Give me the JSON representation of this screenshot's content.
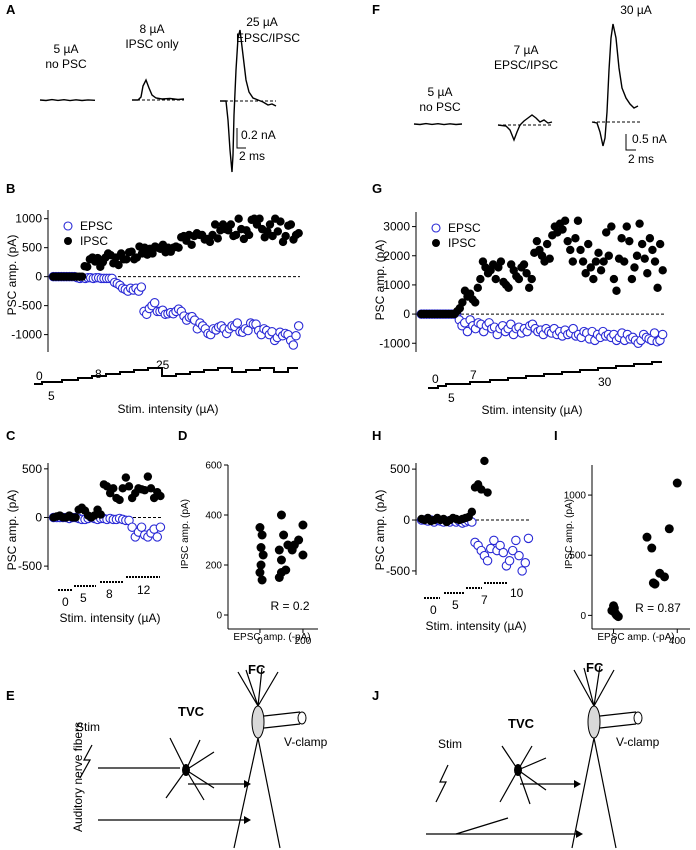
{
  "panels": {
    "A": {
      "letter": "A",
      "traces": [
        {
          "line1": "5 µA",
          "line2": "no PSC"
        },
        {
          "line1": "8 µA",
          "line2": "IPSC only"
        },
        {
          "line1": "25 µA",
          "line2": "EPSC/IPSC"
        }
      ],
      "scale": {
        "amp": "0.2 nA",
        "time": "2 ms"
      }
    },
    "F": {
      "letter": "F",
      "traces": [
        {
          "line1": "5 µA",
          "line2": "no PSC"
        },
        {
          "line1": "7 µA",
          "line2": "EPSC/IPSC"
        },
        {
          "line1": "30 µA",
          "line2": ""
        }
      ],
      "scale": {
        "amp": "0.5 nA",
        "time": "2 ms"
      }
    },
    "B": {
      "letter": "B",
      "ylabel": "PSC amp. (pA)",
      "xlabel": "Stim. intensity (µA)",
      "stim_labels": [
        "0",
        "5",
        "8",
        "25"
      ],
      "legend": {
        "epsc": "EPSC",
        "ipsc": "IPSC"
      }
    },
    "G": {
      "letter": "G",
      "ylabel": "PSC amp. (pA)",
      "xlabel": "Stim. intensity (µA)",
      "stim_labels": [
        "0",
        "5",
        "7",
        "30"
      ],
      "legend": {
        "epsc": "EPSC",
        "ipsc": "IPSC"
      }
    },
    "C": {
      "letter": "C",
      "ylabel": "PSC amp. (pA)",
      "xlabel": "Stim. intensity (µA)",
      "stim_labels": [
        "0",
        "5",
        "8",
        "12"
      ]
    },
    "D": {
      "letter": "D",
      "ylabel": "IPSC amp. (pA)",
      "xlabel": "EPSC amp. (-pA)",
      "r_value": "R = 0.2"
    },
    "H": {
      "letter": "H",
      "ylabel": "PSC amp. (pA)",
      "xlabel": "Stim. intensity (µA)",
      "stim_labels": [
        "0",
        "5",
        "7",
        "10"
      ]
    },
    "I": {
      "letter": "I",
      "ylabel": "IPSC amp. (pA)",
      "xlabel": "EPSC amp. (-pA)",
      "r_value": "R = 0.87"
    },
    "E": {
      "letter": "E",
      "stim": "Stim",
      "tvc": "TVC",
      "fc": "FC",
      "vclamp": "V-clamp",
      "fibers": "Auditory nerve fibers"
    },
    "J": {
      "letter": "J",
      "stim": "Stim",
      "tvc": "TVC",
      "fc": "FC",
      "vclamp": "V-clamp"
    }
  },
  "chart_data": [
    {
      "id": "B",
      "type": "scatter",
      "xlabel": "Stim. intensity (µA)",
      "ylabel": "PSC amp. (pA)",
      "ylim": [
        -1300,
        1150
      ],
      "yticks": [
        -1000,
        -500,
        0,
        500,
        1000
      ],
      "series": [
        {
          "name": "EPSC",
          "values": [
            0,
            0,
            0,
            0,
            0,
            0,
            0,
            0,
            0,
            -20,
            -30,
            -20,
            -30,
            -20,
            -20,
            -30,
            -20,
            -20,
            -30,
            -30,
            -30,
            -30,
            -30,
            -100,
            -120,
            -150,
            -200,
            -220,
            -250,
            -200,
            -230,
            -200,
            -250,
            -180,
            -600,
            -650,
            -550,
            -500,
            -450,
            -600,
            -600,
            -580,
            -650,
            -640,
            -620,
            -640,
            -600,
            -560,
            -600,
            -680,
            -750,
            -700,
            -690,
            -750,
            -900,
            -800,
            -850,
            -900,
            -980,
            -1000,
            -900,
            -920,
            -870,
            -850,
            -900,
            -980,
            -900,
            -850,
            -860,
            -800,
            -950,
            -960,
            -900,
            -930,
            -800,
            -820,
            -820,
            -930,
            -1000,
            -900,
            -930,
            -1000,
            -950,
            -1100,
            -1050,
            -960,
            -1020,
            -980,
            -1000,
            -1100,
            -1180,
            -1020,
            -850
          ]
        },
        {
          "name": "IPSC",
          "values": [
            0,
            0,
            0,
            0,
            0,
            0,
            0,
            0,
            0,
            0,
            0,
            0,
            180,
            170,
            300,
            330,
            260,
            320,
            170,
            250,
            330,
            400,
            370,
            230,
            330,
            200,
            400,
            300,
            300,
            420,
            430,
            300,
            330,
            520,
            400,
            500,
            380,
            480,
            400,
            520,
            500,
            480,
            550,
            420,
            500,
            430,
            500,
            520,
            500,
            680,
            700,
            620,
            720,
            550,
            700,
            750,
            720,
            720,
            640,
            650,
            600,
            720,
            900,
            660,
            800,
            900,
            820,
            800,
            900,
            700,
            720,
            1000,
            820,
            650,
            800,
            720,
            980,
            1000,
            900,
            1000,
            820,
            680,
            780,
            900,
            700,
            1000,
            780,
            950,
            600,
            700,
            880,
            900,
            640,
            720,
            750
          ]
        }
      ]
    },
    {
      "id": "G",
      "type": "scatter",
      "xlabel": "Stim. intensity (µA)",
      "ylabel": "PSC amp. (pA)",
      "ylim": [
        -1300,
        3500
      ],
      "yticks": [
        -1000,
        0,
        1000,
        2000,
        3000
      ],
      "series": [
        {
          "name": "EPSC",
          "values": [
            0,
            0,
            0,
            0,
            0,
            0,
            0,
            0,
            0,
            0,
            0,
            0,
            0,
            0,
            -200,
            -400,
            -300,
            -600,
            -200,
            -400,
            -500,
            -300,
            -350,
            -600,
            -400,
            -300,
            -500,
            -450,
            -700,
            -500,
            -400,
            -600,
            -500,
            -350,
            -700,
            -500,
            -450,
            -650,
            -500,
            -600,
            -400,
            -350,
            -500,
            -600,
            -550,
            -700,
            -500,
            -600,
            -650,
            -500,
            -700,
            -600,
            -750,
            -550,
            -700,
            -650,
            -500,
            -750,
            -700,
            -800,
            -600,
            -650,
            -850,
            -600,
            -900,
            -700,
            -800,
            -600,
            -750,
            -700,
            -800,
            -700,
            -900,
            -800,
            -650,
            -900,
            -700,
            -850,
            -800,
            -900,
            -1000,
            -900,
            -700,
            -800,
            -850,
            -900,
            -650,
            -950,
            -900,
            -700
          ]
        },
        {
          "name": "IPSC",
          "values": [
            0,
            0,
            0,
            0,
            0,
            0,
            0,
            0,
            0,
            0,
            0,
            0,
            0,
            0,
            100,
            200,
            400,
            800,
            600,
            700,
            500,
            400,
            900,
            1200,
            1800,
            1600,
            1400,
            1500,
            1700,
            1200,
            1600,
            1800,
            1100,
            1000,
            900,
            1700,
            1500,
            1300,
            1200,
            1600,
            1700,
            1400,
            900,
            1200,
            2100,
            2500,
            2200,
            2000,
            1800,
            2400,
            1900,
            2700,
            3000,
            2800,
            3100,
            2900,
            3200,
            2500,
            2200,
            1800,
            2600,
            3200,
            2200,
            1800,
            1400,
            2400,
            1600,
            1200,
            1800,
            2100,
            1500,
            1800,
            2800,
            2000,
            3000,
            1200,
            800,
            1900,
            2600,
            1800,
            3000,
            2500,
            1200,
            1600,
            2000,
            3100,
            2400,
            1900,
            1400,
            2600,
            2200,
            1800,
            900,
            2400,
            1500
          ]
        }
      ]
    },
    {
      "id": "C",
      "type": "scatter",
      "xlabel": "Stim. intensity (µA)",
      "ylabel": "PSC amp. (pA)",
      "ylim": [
        -540,
        560
      ],
      "yticks": [
        -500,
        0,
        500
      ],
      "series": [
        {
          "name": "EPSC",
          "values": [
            0,
            0,
            0,
            0,
            0,
            -10,
            0,
            0,
            -10,
            -20,
            -20,
            -10,
            0,
            -10,
            -20,
            -10,
            -10,
            -20,
            -10,
            -20,
            -20,
            -10,
            -20,
            -30,
            -30,
            -100,
            -200,
            -150,
            -100,
            -180,
            -200,
            -160,
            -120,
            -200,
            -100
          ]
        },
        {
          "name": "IPSC",
          "values": [
            0,
            10,
            20,
            0,
            0,
            20,
            0,
            0,
            80,
            100,
            70,
            20,
            0,
            20,
            80,
            30,
            340,
            320,
            250,
            300,
            200,
            180,
            300,
            410,
            320,
            200,
            250,
            300,
            290,
            280,
            420,
            300,
            200,
            260,
            220
          ]
        }
      ]
    },
    {
      "id": "D",
      "type": "scatter",
      "xlabel": "EPSC amp. (-pA)",
      "ylabel": "IPSC amp. (pA)",
      "ylim": [
        -40,
        600
      ],
      "yticks": [
        0,
        200,
        400,
        600
      ],
      "xlim": [
        -130,
        270
      ],
      "xticks": [
        0,
        200
      ],
      "series": [
        {
          "name": "IPSC vs EPSC",
          "x": [
            0,
            10,
            5,
            15,
            0,
            10,
            5,
            100,
            110,
            130,
            90,
            100,
            120,
            200,
            180,
            150,
            160,
            200,
            100,
            90
          ],
          "y": [
            350,
            320,
            270,
            240,
            170,
            140,
            200,
            400,
            320,
            280,
            260,
            220,
            180,
            360,
            300,
            260,
            280,
            240,
            170,
            150
          ]
        }
      ],
      "annotation": "R = 0.2"
    },
    {
      "id": "H",
      "type": "scatter",
      "xlabel": "Stim. intensity (µA)",
      "ylabel": "PSC amp. (pA)",
      "ylim": [
        -540,
        560
      ],
      "yticks": [
        -500,
        0,
        500
      ],
      "series": [
        {
          "name": "EPSC",
          "values": [
            0,
            0,
            -10,
            0,
            -20,
            0,
            -10,
            -20,
            -10,
            -20,
            0,
            -20,
            -10,
            -30,
            -20,
            -10,
            -20,
            -220,
            -250,
            -300,
            -350,
            -400,
            -280,
            -200,
            -300,
            -250,
            -320,
            -450,
            -400,
            -300,
            -200,
            -350,
            -500,
            -420,
            -180
          ]
        },
        {
          "name": "IPSC",
          "values": [
            10,
            0,
            20,
            -10,
            0,
            20,
            0,
            10,
            -20,
            0,
            20,
            10,
            0,
            10,
            20,
            30,
            80,
            320,
            350,
            300,
            580,
            270,
            null,
            null,
            null,
            null,
            null,
            null,
            null,
            null,
            null,
            null,
            null,
            null,
            null
          ]
        }
      ]
    },
    {
      "id": "I",
      "type": "scatter",
      "xlabel": "EPSC amp. (-pA)",
      "ylabel": "IPSC amp. (pA)",
      "ylim": [
        -80,
        1250
      ],
      "yticks": [
        0,
        500,
        1000
      ],
      "xlim": [
        -110,
        480
      ],
      "xticks": [
        0,
        400
      ],
      "series": [
        {
          "name": "IPSC vs EPSC",
          "x": [
            0,
            10,
            20,
            -10,
            5,
            30,
            15,
            210,
            240,
            290,
            320,
            350,
            400,
            250,
            260
          ],
          "y": [
            80,
            20,
            0,
            40,
            60,
            -10,
            10,
            650,
            560,
            350,
            320,
            720,
            1100,
            270,
            260
          ]
        }
      ],
      "annotation": "R = 0.87"
    }
  ]
}
